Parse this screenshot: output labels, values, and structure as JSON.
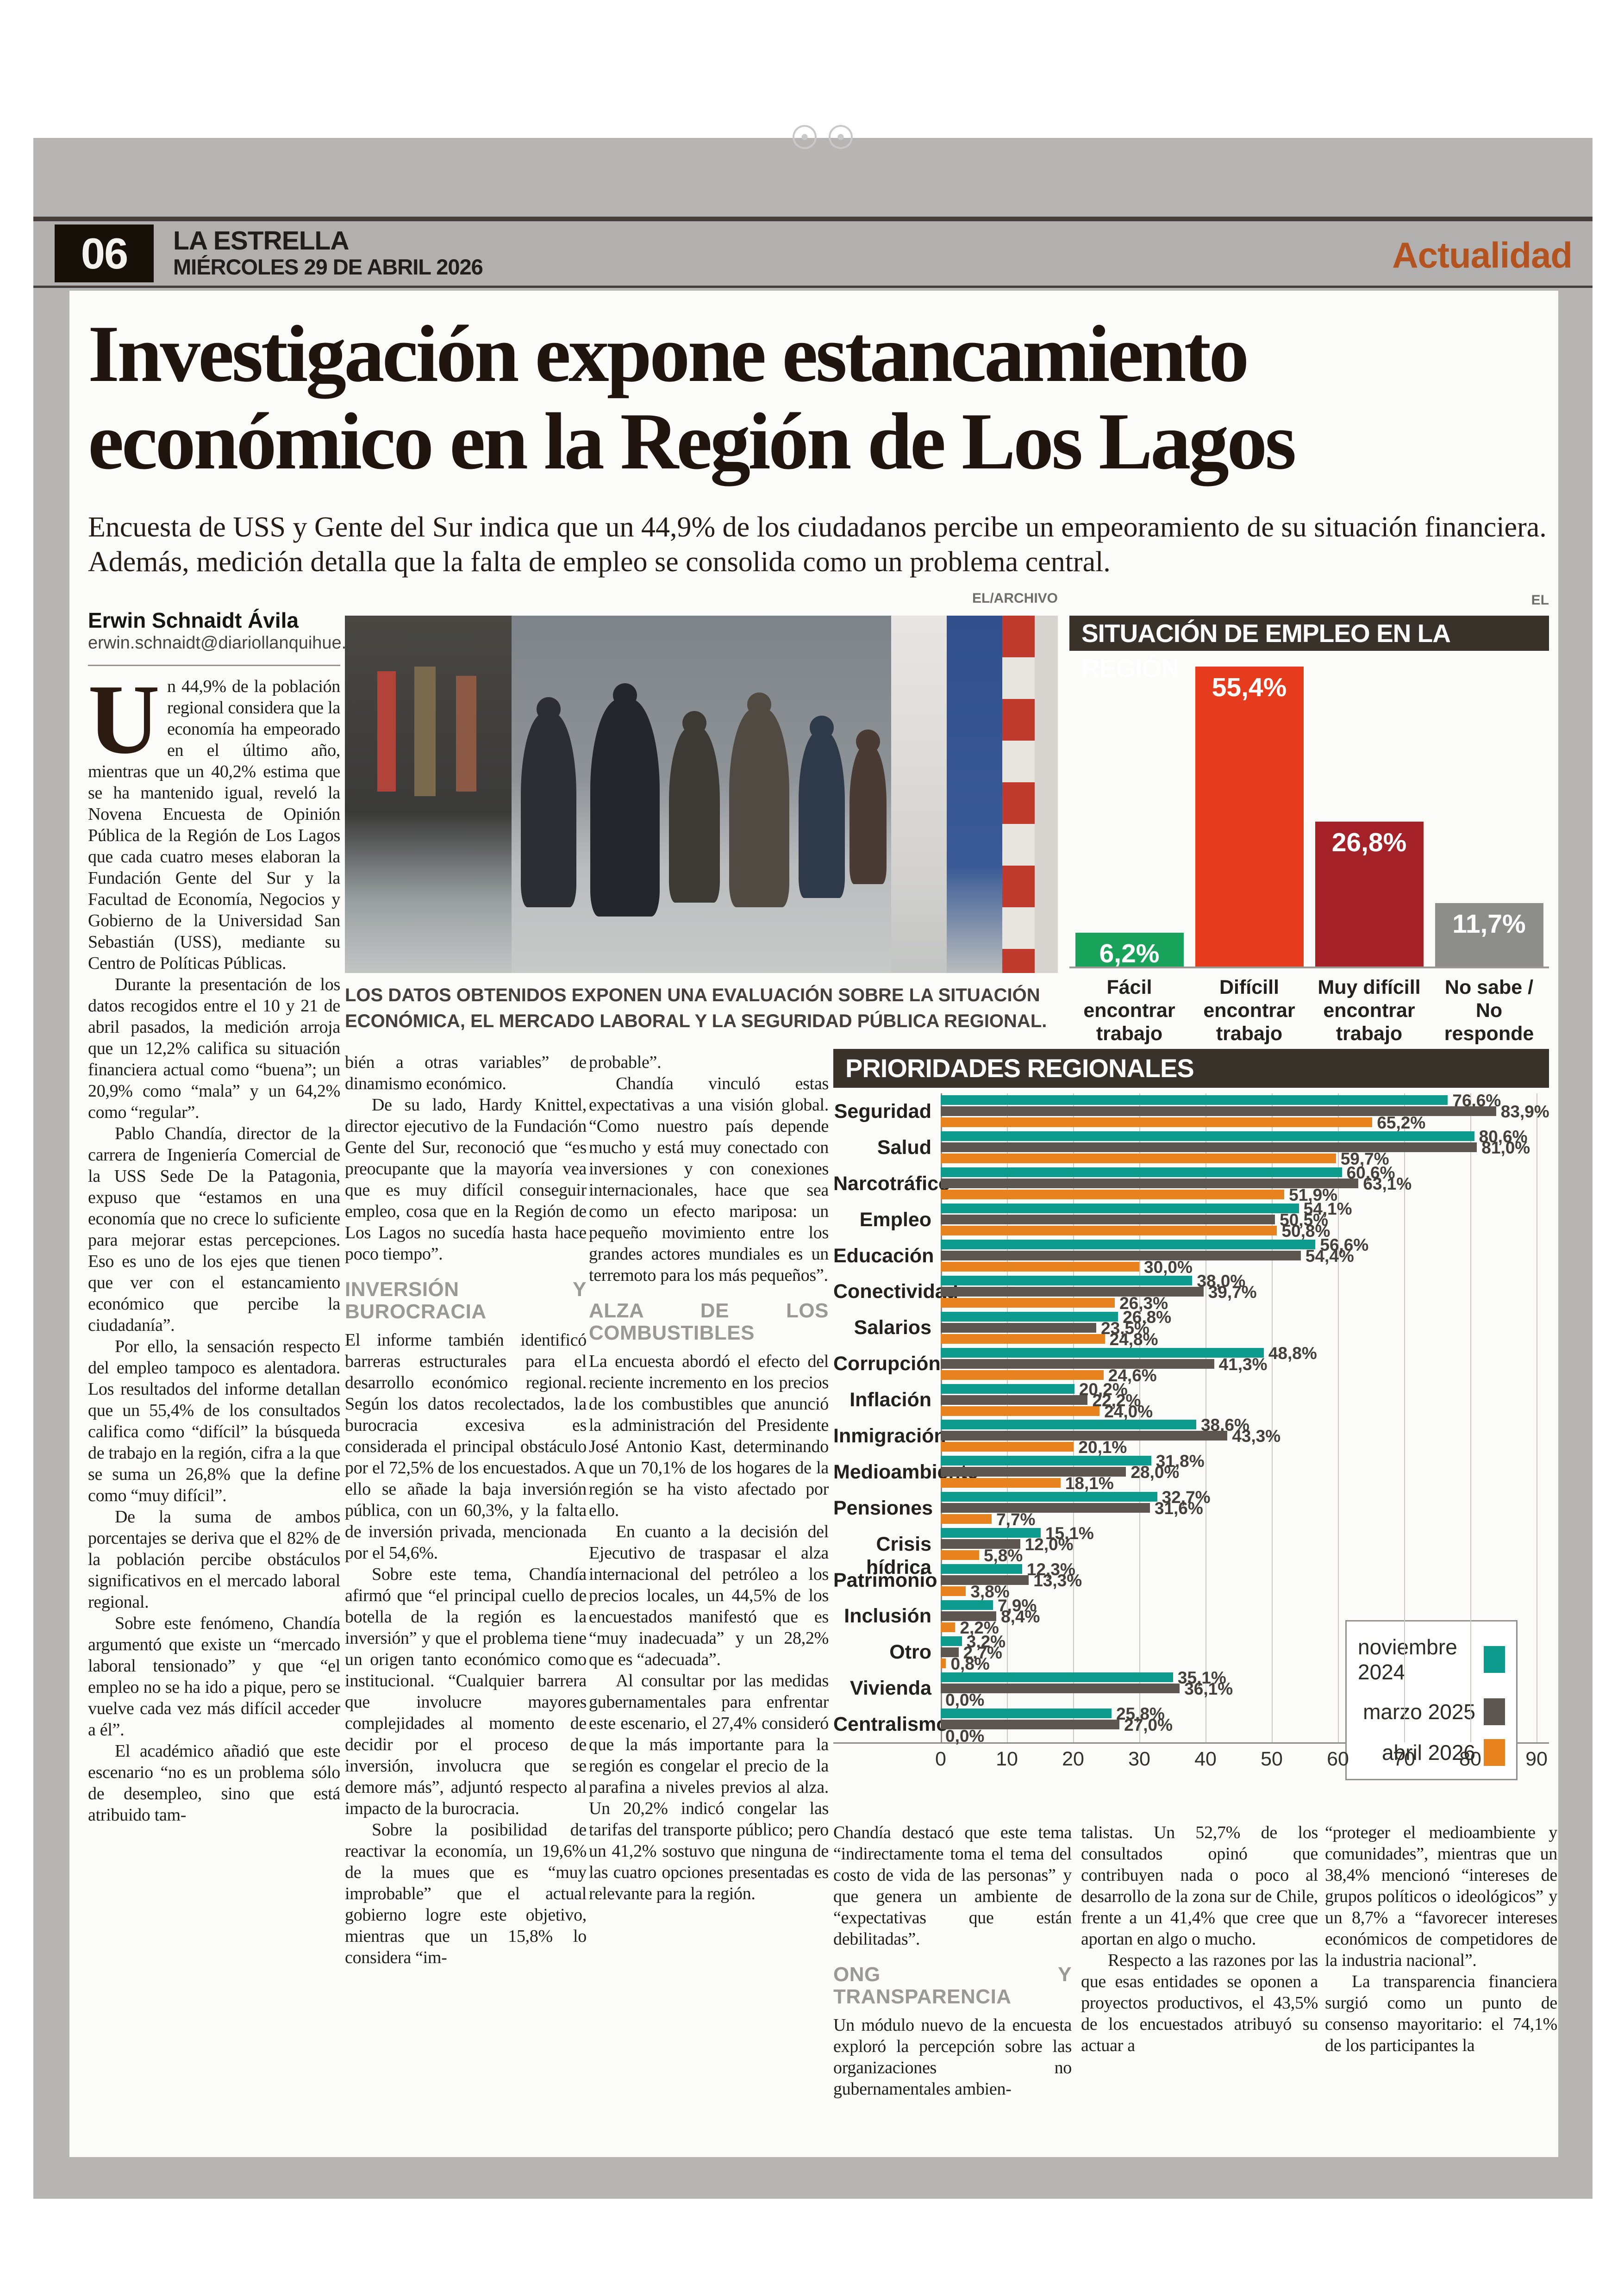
{
  "page": {
    "number": "06",
    "newspaper": "LA ESTRELLA",
    "date": "MIÉRCOLES 29 DE ABRIL 2026",
    "section": "Actualidad"
  },
  "credits": {
    "photo": "EL/ARCHIVO",
    "chart1_top": "EL",
    "chart1_bottom": "EL"
  },
  "article": {
    "headline": [
      "Investigación expone estancamiento",
      "económico en la Región de Los Lagos"
    ],
    "subhead": "Encuesta de USS y Gente del Sur indica que un 44,9% de los ciudadanos percibe un empeoramiento de su situación financiera. Además, medición detalla que la falta de empleo se consolida como un problema central.",
    "byline": {
      "author": "Erwin Schnaidt Ávila",
      "email": "erwin.schnaidt@diariollanquihue.cl"
    },
    "photo_caption": "LOS DATOS OBTENIDOS EXPONEN UNA EVALUACIÓN SOBRE LA SITUACIÓN ECONÓMICA, EL MERCADO LABORAL Y LA SEGURIDAD PÚBLICA REGIONAL.",
    "columns": {
      "col1": [
        {
          "type": "lead",
          "dropcap": "U",
          "text": "n 44,9% de la población regional considera que la economía ha empeorado en el último año, mientras que un 40,2% estima que se ha mantenido igual, reveló la Novena Encuesta de Opinión Pública de la Región de Los Lagos que cada cuatro meses elaboran la Fundación Gente del Sur y la Facultad de Economía, Negocios y Gobierno de la Universidad San Sebastián (USS), mediante su Centro de Políticas Públicas."
        },
        {
          "type": "p",
          "text": "Durante la presentación de los datos recogidos entre el 10 y 21 de abril pasados, la medición arroja que un 12,2% califica su situación financiera actual como “buena”; un 20,9% como “mala” y un 64,2% como “regular”."
        },
        {
          "type": "p",
          "text": "Pablo Chandía, director de la carrera de Ingeniería Comercial de la USS Sede De la Patagonia, expuso que “estamos en una economía que no crece lo suficiente para mejorar estas percepciones. Eso es uno de los ejes que tienen que ver con el estancamiento económico que percibe la ciudadanía”."
        },
        {
          "type": "p",
          "text": "Por ello, la sensación respecto del empleo tampoco es alentadora. Los resultados del informe detallan que un 55,4% de los consultados califica como “difícil” la búsqueda de trabajo en la región, cifra a la que se suma un 26,8% que la define como “muy difícil”."
        },
        {
          "type": "p",
          "text": "De la suma de ambos porcentajes se deriva que el 82% de la población percibe obstáculos significativos en el mercado laboral regional."
        },
        {
          "type": "p",
          "text": "Sobre este fenómeno, Chandía argumentó que existe un “mercado laboral tensionado” y que “el empleo no se ha ido a pique, pero se vuelve cada vez más difícil acceder a él”."
        },
        {
          "type": "p",
          "text": "El académico añadió que este escenario “no es un problema sólo de desempleo, sino que está atribuido tam-"
        }
      ],
      "col2": [
        {
          "type": "p",
          "text": "bién a otras variables” de dinamismo económico."
        },
        {
          "type": "p",
          "text": "De su lado, Hardy Knittel, director ejecutivo de la Fundación Gente del Sur, reconoció que “es preocupante que la mayoría vea que es muy difícil conseguir empleo, cosa que en la Región de Los Lagos no sucedía hasta hace poco tiempo”."
        },
        {
          "type": "subhead",
          "text": "INVERSIÓN Y BUROCRACIA"
        },
        {
          "type": "p",
          "text": "El informe también identificó barreras estructurales para el desarrollo económico regional. Según los datos recolectados, la burocracia excesiva es considerada el principal obstáculo por el 72,5% de los encuestados. A ello se añade la baja inversión pública, con un 60,3%, y la falta de inversión privada, mencionada por el 54,6%."
        },
        {
          "type": "p",
          "text": "Sobre este tema, Chandía afirmó que “el principal cuello de botella de la región es la inversión” y que el problema tiene un origen tanto económico como institucional. “Cualquier barrera que involucre mayores complejidades al momento de decidir por el proceso de inversión, involucra que se demore más”, adjuntó respecto al impacto de la burocracia."
        },
        {
          "type": "p",
          "text": "Sobre la posibilidad de reactivar la economía, un 19,6% de la mues que es “muy improbable” que el actual gobierno logre este objetivo, mientras que un 15,8% lo considera “im-"
        }
      ],
      "col3": [
        {
          "type": "p",
          "text": "probable”."
        },
        {
          "type": "p",
          "text": "Chandía vinculó estas expectativas a una visión global. “Como nuestro país depende mucho y está muy conectado con inversiones y con conexiones internacionales, hace que sea como un efecto mariposa: un pequeño movimiento entre los grandes actores mundiales es un terremoto para los más pequeños”."
        },
        {
          "type": "subhead",
          "text": "ALZA DE LOS COMBUSTIBLES"
        },
        {
          "type": "p",
          "text": "La encuesta abordó el efecto del reciente incremento en los precios de los combustibles que anunció la administración del Presidente José Antonio Kast, determinando que un 70,1% de los hogares de la región se ha visto afectado por ello."
        },
        {
          "type": "p",
          "text": "En cuanto a la decisión del Ejecutivo de traspasar el alza internacional del petróleo a los precios locales, un 44,5% de los encuestados manifestó que es “muy inadecuada” y un 28,2% que es “adecuada”."
        },
        {
          "type": "p",
          "text": "Al consultar por las medidas gubernamentales para enfrentar este escenario, el 27,4% consideró que la más importante para la región es congelar el precio de la parafina a niveles previos al alza. Un 20,2% indicó congelar las tarifas del transporte público; pero un 41,2% sostuvo que ninguna de las cuatro opciones presentadas es relevante para la región."
        }
      ],
      "col4": [
        {
          "type": "p",
          "text": "Chandía destacó que este tema “indirectamente toma el tema del costo de vida de las personas” y que genera un ambiente de “expectativas que están debilitadas”."
        },
        {
          "type": "subhead",
          "text": "ONG Y TRANSPARENCIA"
        },
        {
          "type": "p",
          "text": "Un módulo nuevo de la encuesta exploró la percepción sobre las organizaciones no gubernamentales ambien-"
        }
      ],
      "col5": [
        {
          "type": "p",
          "text": "talistas. Un 52,7% de los consultados opinó que contribuyen nada o poco al desarrollo de la zona sur de Chile, frente a un 41,4% que cree que aportan en algo o mucho."
        },
        {
          "type": "p",
          "text": "Respecto a las razones por las que esas entidades se oponen a proyectos productivos, el 43,5% de los encuestados atribuyó su actuar a"
        }
      ],
      "col6": [
        {
          "type": "p",
          "text": "“proteger el medioambiente y comunidades”, mientras que un 38,4% mencionó “intereses de grupos políticos o ideológicos” y un 8,7% a “favorecer intereses económicos de competidores de la industria nacional”."
        },
        {
          "type": "p",
          "text": "La transparencia financiera surgió como un punto de consenso mayoritario: el 74,1% de los participantes la"
        }
      ]
    }
  },
  "chart_data": [
    {
      "type": "bar",
      "title": "SITUACIÓN DE EMPLEO EN LA REGIÓN",
      "categories": [
        "Fácil encontrar trabajo",
        "Difícill encontrar trabajo",
        "Muy difícill encontrar trabajo",
        "No sabe / No responde"
      ],
      "values": [
        6.2,
        55.4,
        26.8,
        11.7
      ],
      "colors": [
        "#18a25a",
        "#e73b1d",
        "#a32127",
        "#8d8d8b"
      ],
      "ylim": [
        0,
        60
      ],
      "grid": false,
      "value_label_format": "comma-percent"
    },
    {
      "type": "bar",
      "orientation": "horizontal",
      "title": "PRIORIDADES REGIONALES",
      "categories": [
        "Seguridad",
        "Salud",
        "Narcotráfico",
        "Empleo",
        "Educación",
        "Conectividad",
        "Salarios",
        "Corrupción",
        "Inflación",
        "Inmigración",
        "Medioambiente",
        "Pensiones",
        "Crisis hídrica",
        "Patrimonio",
        "Inclusión",
        "Otro",
        "Vivienda",
        "Centralismo"
      ],
      "series": [
        {
          "name": "noviembre 2024",
          "color": "#0d9b8d",
          "values": [
            76.6,
            80.6,
            60.6,
            54.1,
            56.6,
            38.0,
            26.8,
            48.8,
            20.2,
            38.6,
            31.8,
            32.7,
            15.1,
            12.3,
            7.9,
            3.2,
            35.1,
            25.8
          ]
        },
        {
          "name": "marzo 2025",
          "color": "#5d5550",
          "values": [
            83.9,
            81.0,
            63.1,
            50.5,
            54.4,
            39.7,
            23.5,
            41.3,
            22.2,
            43.3,
            28.0,
            31.6,
            12.0,
            13.3,
            8.4,
            2.7,
            36.1,
            27.0
          ]
        },
        {
          "name": "abril 2026",
          "color": "#e8821f",
          "values": [
            65.2,
            59.7,
            51.9,
            50.8,
            30.0,
            26.3,
            24.8,
            24.6,
            24.0,
            20.1,
            18.1,
            7.7,
            5.8,
            3.8,
            2.2,
            0.8,
            0.0,
            0.0
          ]
        }
      ],
      "xlim": [
        0,
        90
      ],
      "x_ticks": [
        0,
        10,
        20,
        30,
        40,
        50,
        60,
        70,
        80,
        90
      ],
      "grid": true,
      "legend_position": "bottom-right-inside",
      "value_label_format": "comma-percent"
    }
  ]
}
